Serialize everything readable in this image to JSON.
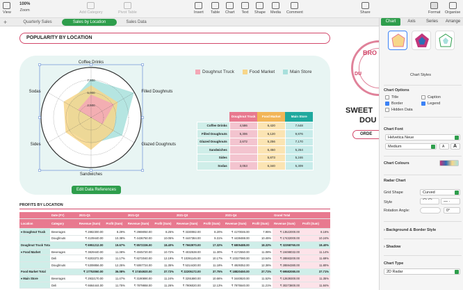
{
  "toolbar": {
    "view": "View",
    "zoom_value": "100%",
    "zoom": "Zoom",
    "add_category": "Add Category",
    "pivot_table": "Pivot Table",
    "insert": "Insert",
    "table": "Table",
    "chart": "Chart",
    "text": "Text",
    "shape": "Shape",
    "media": "Media",
    "comment": "Comment",
    "share": "Share",
    "format": "Format",
    "organise": "Organise"
  },
  "sheets": {
    "add": "+",
    "tabs": [
      "Quarterly Sales",
      "Sales by Location",
      "Sales Data"
    ],
    "active": 1
  },
  "canvas": {
    "title": "POPULARITY BY LOCATION",
    "edit_button": "Edit Data References",
    "badge_top": "BRO",
    "badge_side": "DU",
    "sweet_title_1": "SWEET",
    "sweet_title_2": "DOU",
    "order_label": "ORDE",
    "profits_title": "PROFITS BY LOCATION"
  },
  "chart_data": {
    "type": "radar",
    "categories": [
      "Coffee Drinks",
      "Filled Doughnuts",
      "Glazed Doughnuts",
      "Sandwiches",
      "Sides",
      "Sodas"
    ],
    "radial_ticks": [
      "2,500",
      "5,000",
      "7,500"
    ],
    "rmax": 10000,
    "series": [
      {
        "name": "Doughnut Truck",
        "color": "#f3a7b6",
        "values": [
          4586,
          5306,
          2672,
          0,
          0,
          3053
        ]
      },
      {
        "name": "Food Market",
        "color": "#f7d68a",
        "values": [
          6420,
          6120,
          5256,
          6450,
          5873,
          6340
        ]
      },
      {
        "name": "Main Store",
        "color": "#a8e0dc",
        "values": [
          7648,
          9876,
          7170,
          5264,
          5246,
          5309
        ]
      }
    ],
    "legend": "top"
  },
  "mini_table": {
    "headers": [
      "",
      "Doughnut Truck",
      "Food Market",
      "Main Store"
    ],
    "rows": [
      [
        "Coffee Drinks",
        "4,586",
        "6,420",
        "7,648"
      ],
      [
        "Filled Doughnuts",
        "5,306",
        "6,120",
        "9,876"
      ],
      [
        "Glazed Doughnuts",
        "2,672",
        "5,256",
        "7,170"
      ],
      [
        "Sandwiches",
        "",
        "6,450",
        "5,264"
      ],
      [
        "Sides",
        "",
        "5,873",
        "5,246"
      ],
      [
        "Sodas",
        "3,053",
        "6,340",
        "5,309"
      ]
    ]
  },
  "profits": {
    "head1": [
      "",
      "Date (FY)",
      "2021-Q1",
      "",
      "2021-Q2",
      "",
      "2021-Q3",
      "",
      "2021-Q4",
      "",
      "Grand Total",
      ""
    ],
    "head2": [
      "Location",
      "Category",
      "Revenue (Sum)",
      "Profit (Sum)",
      "Revenue (Sum)",
      "Profit (Sum)",
      "Revenue (Sum)",
      "Profit (Sum)",
      "Revenue (Sum)",
      "Profit (Sum)",
      "Revenue (Sum)",
      "Profit (Sum)"
    ],
    "rows": [
      {
        "type": "group",
        "cells": [
          "▾ Doughnut Truck",
          "Beverages",
          "₹ 2882300.00",
          "8.29%",
          "₹ 2969050.00",
          "8.25%",
          "₹ 3330082.00",
          "8.20%",
          "₹ 4170046.00",
          "7.95%",
          "₹ 13522000.00",
          "8.16%"
        ]
      },
      {
        "type": "row",
        "cells": [
          "",
          "Doughnuts",
          "₹ 4109440.00",
          "10.38%",
          "₹ 4436750.00",
          "10.05%",
          "₹ 4447384.00",
          "9.31%",
          "₹ 4438488.00",
          "10.45%",
          "₹ 17432000.00",
          "10.24%"
        ]
      },
      {
        "type": "total",
        "cells": [
          "Doughnut Truck Total",
          "",
          "₹ 6951212.00",
          "19.67%",
          "₹ 8572336.00",
          "18.40%",
          "₹ 7663970.00",
          "17.32%",
          "₹ 6805488.00",
          "18.32%",
          "₹ 32358760.00",
          "18.40%"
        ]
      },
      {
        "type": "group",
        "cells": [
          "▾ Food Market",
          "Beverages",
          "₹ 3829440.00",
          "11.38%",
          "₹ 4045720.00",
          "10.72%",
          "₹ 4032538.00",
          "11.30%",
          "₹ 4172550.00",
          "11.08%",
          "₹ 19498032.00",
          "11.14%"
        ]
      },
      {
        "type": "row",
        "cells": [
          "",
          "Deli",
          "₹ 8203372.00",
          "11.17%",
          "₹ 8272040.00",
          "12.19%",
          "₹ 10391145.00",
          "10.17%",
          "₹ 10327080.00",
          "13.54%",
          "₹ 28593200.00",
          "11.69%"
        ]
      },
      {
        "type": "row",
        "cells": [
          "",
          "Doughnuts",
          "₹ 5308856.00",
          "12.25%",
          "₹ 5067724.00",
          "11.35%",
          "₹ 5314430.00",
          "11.18%",
          "₹ 4929352.00",
          "12.36%",
          "₹ 28594380.00",
          "11.80%"
        ]
      },
      {
        "type": "total",
        "cells": [
          "Food Market Total",
          "",
          "₹ 17753060.00",
          "36.08%",
          "₹ 17404920.00",
          "37.72%",
          "₹ 22205172.00",
          "37.75%",
          "₹ 18820450.00",
          "37.71%",
          "₹ 69582080.00",
          "37.71%"
        ]
      },
      {
        "type": "group",
        "cells": [
          "▾ Main Store",
          "Beverages",
          "₹ 2932170.00",
          "11.47%",
          "₹ 3190890.00",
          "11.24%",
          "₹ 3291880.00",
          "10.66%",
          "₹ 3440820.00",
          "11.52%",
          "₹ 12639300.00",
          "11.35%"
        ]
      },
      {
        "type": "row",
        "cells": [
          "",
          "Deli",
          "₹ 6664444.00",
          "11.75%",
          "₹ 7879868.00",
          "11.26%",
          "₹ 7906020.00",
          "12.13%",
          "₹ 7875540.00",
          "11.21%",
          "₹ 30273800.00",
          "11.84%"
        ]
      }
    ]
  },
  "inspector": {
    "tabs": [
      "Chart",
      "Axis",
      "Series",
      "Arrange"
    ],
    "active_tab": 0,
    "chart_styles": "Chart Styles",
    "chart_options": "Chart Options",
    "title": "Title",
    "caption": "Caption",
    "border": "Border",
    "legend": "Legend",
    "hidden_data": "Hidden Data",
    "chart_font": "Chart Font",
    "font_name": "Helvetica Neue",
    "font_weight": "Medium",
    "font_small": "A",
    "font_large": "A",
    "chart_colours": "Chart Colours",
    "radar_chart": "Radar Chart",
    "grid_shape": "Grid Shape",
    "grid_shape_value": "Curved",
    "style": "Style",
    "rotation_angle": "Rotation Angle:",
    "rotation_value": "0°",
    "background_border": "Background & Border Style",
    "shadow": "Shadow",
    "chart_type": "Chart Type",
    "chart_type_value": "2D Radar"
  },
  "colors": {
    "accent_green": "#2e9e4c",
    "accent_pink": "#d2476a",
    "teal_bg": "#e8f5f3"
  }
}
